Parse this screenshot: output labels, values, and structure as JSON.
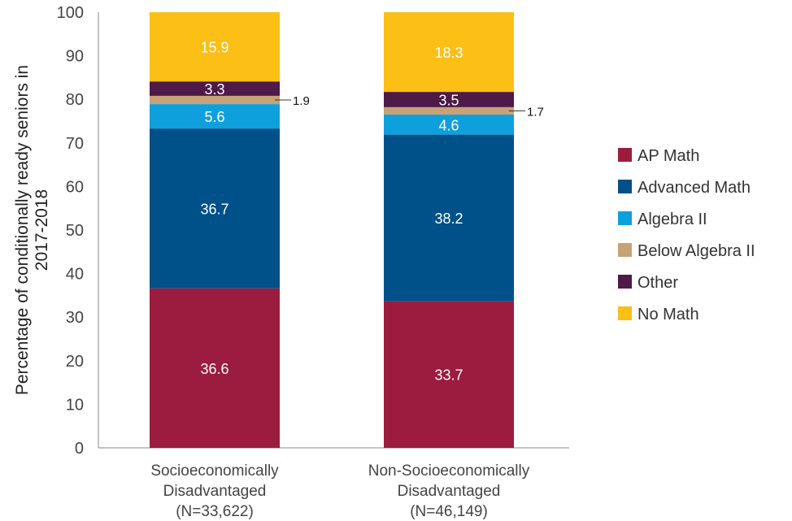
{
  "chart_data": {
    "type": "bar",
    "stacked": true,
    "ylabel": "Percentage of conditionally ready seniors in 2017-2018",
    "ylabel_lines": [
      "Percentage of conditionally ready seniors in",
      "2017-2018"
    ],
    "ylim": [
      0,
      100
    ],
    "yticks": [
      0,
      10,
      20,
      30,
      40,
      50,
      60,
      70,
      80,
      90,
      100
    ],
    "grid": false,
    "legend_position": "right",
    "categories": [
      {
        "lines": [
          "Socioeconomically",
          "Disadvantaged",
          "(N=33,622)"
        ]
      },
      {
        "lines": [
          "Non-Socioeconomically",
          "Disadvantaged",
          "(N=46,149)"
        ]
      }
    ],
    "series": [
      {
        "name": "AP Math",
        "color": "#9b1c3f",
        "values": [
          36.6,
          33.7
        ]
      },
      {
        "name": "Advanced Math",
        "color": "#005089",
        "values": [
          36.7,
          38.2
        ]
      },
      {
        "name": "Algebra II",
        "color": "#0ea0dc",
        "values": [
          5.6,
          4.6
        ]
      },
      {
        "name": "Below Algebra II",
        "color": "#c7a276",
        "values": [
          1.9,
          1.7
        ]
      },
      {
        "name": "Other",
        "color": "#4e1a48",
        "values": [
          3.3,
          3.5
        ]
      },
      {
        "name": "No Math",
        "color": "#fbbf16",
        "values": [
          15.9,
          18.3
        ]
      }
    ],
    "value_labels": [
      [
        "36.6",
        "36.7",
        "5.6",
        "1.9",
        "3.3",
        "15.9"
      ],
      [
        "33.7",
        "38.2",
        "4.6",
        "1.7",
        "3.5",
        "18.3"
      ]
    ]
  }
}
